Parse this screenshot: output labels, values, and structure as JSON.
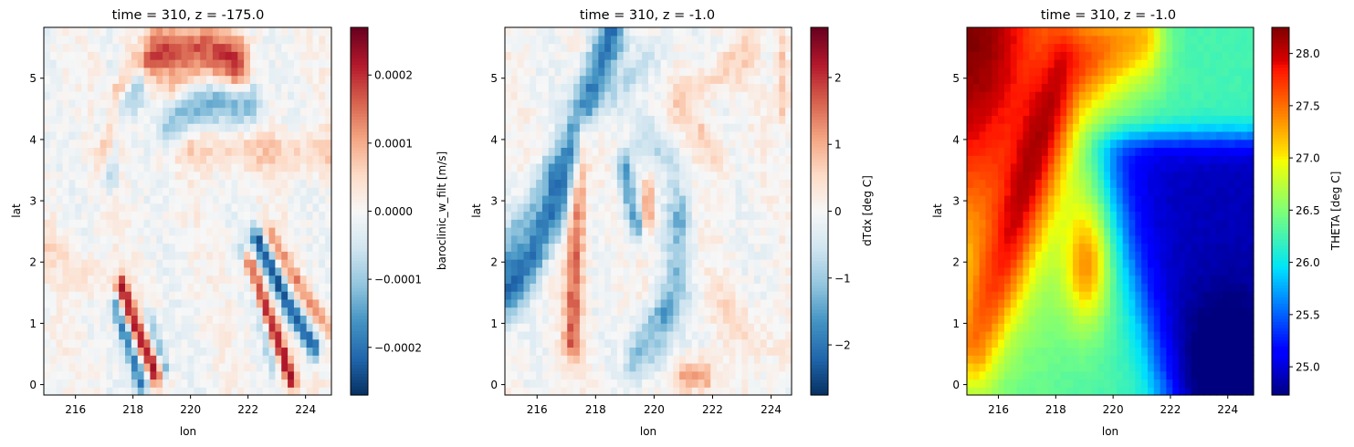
{
  "chart_data": [
    {
      "type": "heatmap",
      "title": "time = 310, z = -175.0",
      "xlabel": "lon",
      "ylabel": "lat",
      "xticks": [
        216,
        218,
        220,
        222,
        224
      ],
      "yticks": [
        0,
        1,
        2,
        3,
        4,
        5
      ],
      "xlim": [
        214.9,
        224.9
      ],
      "ylim": [
        -0.17,
        5.83
      ],
      "colorbar": {
        "label": "baroclinic_w_filt [m/s]",
        "colormap": "RdBu_r",
        "range": [
          -0.00027,
          0.00027
        ],
        "ticks": [
          -0.0002,
          -0.0001,
          0.0,
          0.0001,
          0.0002
        ],
        "tick_labels": [
          "−0.0002",
          "−0.0001",
          "0.0000",
          "0.0001",
          "0.0002"
        ]
      },
      "features": [
        {
          "kind": "line",
          "points": [
            [
              217.2,
              3.9
            ],
            [
              217.4,
              4.7
            ],
            [
              218.0,
              5.2
            ],
            [
              219.0,
              5.45
            ],
            [
              220.5,
              5.5
            ],
            [
              221.6,
              5.3
            ]
          ],
          "value": 0.00018,
          "width": 0.28
        },
        {
          "kind": "line",
          "points": [
            [
              216.9,
              4.2
            ],
            [
              217.3,
              5.0
            ],
            [
              218.2,
              5.4
            ]
          ],
          "value": -9e-05,
          "width": 0.2
        },
        {
          "kind": "line",
          "points": [
            [
              217.2,
              3.5
            ],
            [
              217.5,
              4.5
            ],
            [
              218.2,
              4.9
            ]
          ],
          "value": -0.00016,
          "width": 0.2
        },
        {
          "kind": "line",
          "points": [
            [
              219.2,
              4.1
            ],
            [
              219.8,
              4.5
            ],
            [
              220.8,
              4.7
            ],
            [
              222.0,
              4.6
            ]
          ],
          "value": -0.00013,
          "width": 0.3
        },
        {
          "kind": "line",
          "points": [
            [
              219.4,
              4.85
            ],
            [
              220.5,
              5.0
            ],
            [
              221.8,
              5.0
            ]
          ],
          "value": 7e-05,
          "width": 0.2
        },
        {
          "kind": "line",
          "points": [
            [
              217.6,
              1.6
            ],
            [
              218.2,
              0.8
            ],
            [
              218.8,
              0.2
            ]
          ],
          "value": 0.00022,
          "width": 0.14
        },
        {
          "kind": "line",
          "points": [
            [
              217.4,
              1.3
            ],
            [
              217.9,
              0.6
            ],
            [
              218.3,
              0.0
            ]
          ],
          "value": -0.00019,
          "width": 0.14
        },
        {
          "kind": "line",
          "points": [
            [
              218.6,
              1.1
            ],
            [
              219.1,
              0.3
            ]
          ],
          "value": -0.00012,
          "width": 0.12
        },
        {
          "kind": "line",
          "points": [
            [
              222.3,
              2.4
            ],
            [
              223.3,
              1.4
            ],
            [
              224.3,
              0.6
            ]
          ],
          "value": -0.00024,
          "width": 0.14
        },
        {
          "kind": "line",
          "points": [
            [
              222.0,
              2.0
            ],
            [
              222.8,
              1.0
            ],
            [
              223.5,
              0.1
            ]
          ],
          "value": 0.00024,
          "width": 0.14
        },
        {
          "kind": "line",
          "points": [
            [
              222.7,
              2.5
            ],
            [
              223.8,
              1.6
            ],
            [
              224.8,
              0.9
            ]
          ],
          "value": 0.00012,
          "width": 0.12
        },
        {
          "kind": "line",
          "points": [
            [
              221.8,
              2.2
            ],
            [
              222.4,
              1.2
            ],
            [
              222.9,
              0.3
            ]
          ],
          "value": -0.0001,
          "width": 0.12
        },
        {
          "kind": "line",
          "points": [
            [
              219.0,
              3.9
            ],
            [
              221.0,
              3.85
            ],
            [
              224.9,
              3.8
            ]
          ],
          "value": 6e-05,
          "width": 0.25
        },
        {
          "kind": "line",
          "points": [
            [
              215.0,
              2.3
            ],
            [
              216.5,
              1.8
            ],
            [
              217.4,
              1.4
            ]
          ],
          "value": 4e-05,
          "width": 0.25
        }
      ]
    },
    {
      "type": "heatmap",
      "title": "time = 310, z = -1.0",
      "xlabel": "lon",
      "ylabel": "lat",
      "xticks": [
        216,
        218,
        220,
        222,
        224
      ],
      "yticks": [
        0,
        1,
        2,
        3,
        4,
        5
      ],
      "xlim": [
        214.9,
        224.7
      ],
      "ylim": [
        -0.17,
        5.83
      ],
      "colorbar": {
        "label": "dTdx [deg C]",
        "colormap": "RdBu_r",
        "range": [
          -2.75,
          2.75
        ],
        "ticks": [
          -2,
          -1,
          0,
          1,
          2
        ],
        "tick_labels": [
          "−2",
          "−1",
          "0",
          "1",
          "2"
        ]
      },
      "features": [
        {
          "kind": "line",
          "points": [
            [
              214.9,
              1.5
            ],
            [
              215.8,
              2.1
            ],
            [
              216.6,
              2.9
            ],
            [
              217.2,
              3.8
            ],
            [
              217.9,
              4.9
            ],
            [
              218.5,
              5.7
            ]
          ],
          "value": -2.0,
          "width": 0.32
        },
        {
          "kind": "line",
          "points": [
            [
              214.9,
              2.3
            ],
            [
              215.6,
              2.8
            ],
            [
              216.4,
              3.5
            ]
          ],
          "value": -0.8,
          "width": 0.25
        },
        {
          "kind": "line",
          "points": [
            [
              217.2,
              0.7
            ],
            [
              217.3,
              2.0
            ],
            [
              217.4,
              3.2
            ],
            [
              217.6,
              4.1
            ]
          ],
          "value": 1.6,
          "width": 0.22
        },
        {
          "kind": "line",
          "points": [
            [
              219.0,
              3.6
            ],
            [
              219.2,
              3.0
            ],
            [
              219.4,
              2.6
            ]
          ],
          "value": -1.5,
          "width": 0.2
        },
        {
          "kind": "line",
          "points": [
            [
              219.8,
              3.2
            ],
            [
              219.8,
              2.7
            ]
          ],
          "value": 1.3,
          "width": 0.15
        },
        {
          "kind": "line",
          "points": [
            [
              220.8,
              2.6
            ],
            [
              220.8,
              1.6
            ],
            [
              220.3,
              0.9
            ],
            [
              219.8,
              0.5
            ]
          ],
          "value": -1.0,
          "width": 0.3
        },
        {
          "kind": "line",
          "points": [
            [
              219.6,
              4.1
            ],
            [
              220.6,
              3.7
            ],
            [
              221.0,
              2.9
            ]
          ],
          "value": -0.6,
          "width": 0.25
        },
        {
          "kind": "line",
          "points": [
            [
              218.6,
              4.6
            ],
            [
              219.3,
              5.1
            ],
            [
              220.2,
              5.4
            ]
          ],
          "value": -0.5,
          "width": 0.25
        },
        {
          "kind": "line",
          "points": [
            [
              220.9,
              4.6
            ],
            [
              222.0,
              5.0
            ],
            [
              223.2,
              5.4
            ]
          ],
          "value": 0.6,
          "width": 0.25
        },
        {
          "kind": "line",
          "points": [
            [
              221.6,
              4.1
            ],
            [
              222.3,
              3.7
            ]
          ],
          "value": 0.7,
          "width": 0.2
        },
        {
          "kind": "line",
          "points": [
            [
              219.2,
              0.3
            ],
            [
              219.6,
              0.9
            ],
            [
              220.4,
              1.3
            ]
          ],
          "value": -0.7,
          "width": 0.2
        },
        {
          "kind": "line",
          "points": [
            [
              221.0,
              0.15
            ],
            [
              221.8,
              0.15
            ]
          ],
          "value": 1.1,
          "width": 0.2
        },
        {
          "kind": "line",
          "points": [
            [
              222.2,
              1.4
            ],
            [
              223.2,
              0.9
            ],
            [
              224.3,
              0.6
            ]
          ],
          "value": 0.35,
          "width": 0.3
        },
        {
          "kind": "line",
          "points": [
            [
              224.4,
              5.6
            ],
            [
              224.4,
              4.4
            ]
          ],
          "value": 0.8,
          "width": 0.15
        }
      ]
    },
    {
      "type": "heatmap",
      "title": "time = 310, z = -1.0",
      "xlabel": "lon",
      "ylabel": "lat",
      "xticks": [
        216,
        218,
        220,
        222,
        224
      ],
      "yticks": [
        0,
        1,
        2,
        3,
        4,
        5
      ],
      "xlim": [
        214.9,
        224.9
      ],
      "ylim": [
        -0.17,
        5.83
      ],
      "colorbar": {
        "label": "THETA [deg C]",
        "colormap": "jet",
        "range": [
          24.73,
          28.25
        ],
        "ticks": [
          25.0,
          25.5,
          26.0,
          26.5,
          27.0,
          27.5,
          28.0
        ],
        "tick_labels": [
          "25.0",
          "25.5",
          "26.0",
          "26.5",
          "27.0",
          "27.5",
          "28.0"
        ]
      }
    }
  ]
}
